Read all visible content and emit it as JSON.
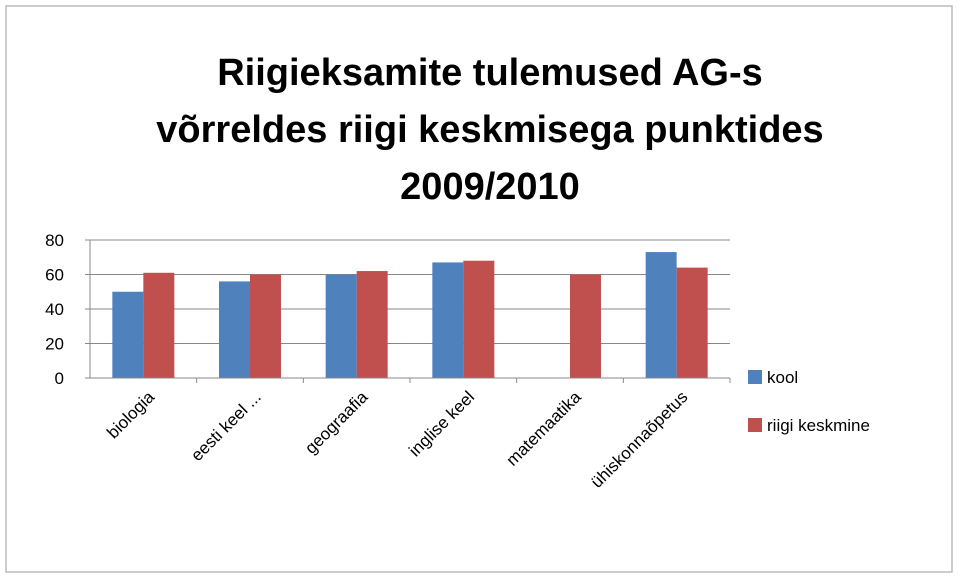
{
  "chart_data": {
    "type": "bar",
    "title": [
      "Riigieksamite tulemused AG-s",
      "võrreldes riigi keskmisega punktides",
      "2009/2010"
    ],
    "categories": [
      "biologia",
      "eesti keel ...",
      "geograafia",
      "inglise keel",
      "matemaatika",
      "ühiskonnaõpetus"
    ],
    "series": [
      {
        "name": "kool",
        "color": "#4f81bd",
        "values": [
          50,
          56,
          60,
          67,
          null,
          73
        ]
      },
      {
        "name": "riigi keskmine",
        "color": "#c0504d",
        "values": [
          61,
          60,
          62,
          68,
          60,
          64
        ]
      }
    ],
    "ylim": [
      0,
      80
    ],
    "yticks": [
      0,
      20,
      40,
      60,
      80
    ],
    "grid": true,
    "legend": "right"
  }
}
